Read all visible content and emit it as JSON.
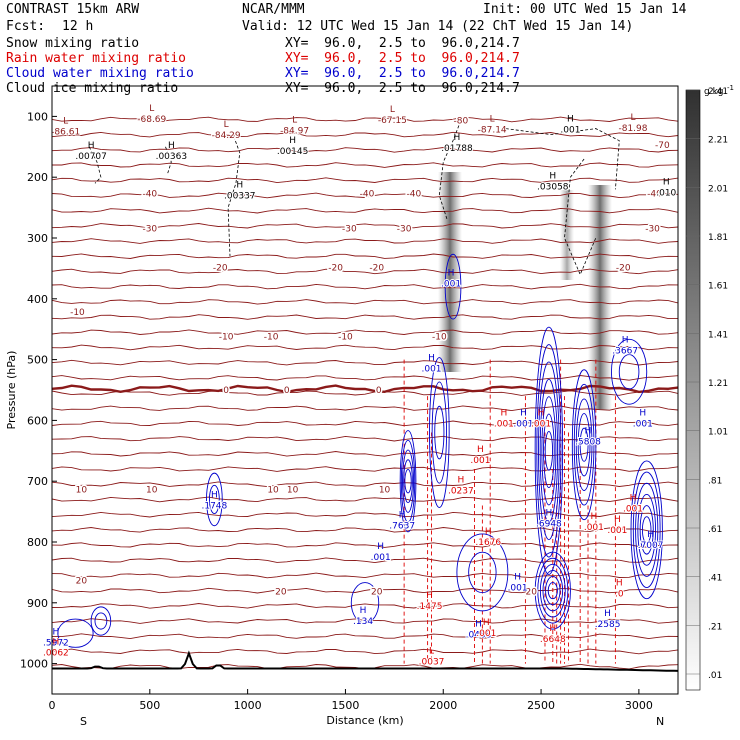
{
  "header": {
    "model": "CONTRAST 15km ARW",
    "org": "NCAR/MMM",
    "init": "Init: 00 UTC Wed 15 Jan 14",
    "fcst_label": "Fcst:",
    "fcst_value": "12 h",
    "valid": "Valid: 12 UTC Wed 15 Jan 14 (22 ChT Wed 15 Jan 14)"
  },
  "fields": [
    {
      "name": "Snow mixing ratio",
      "xy": "XY=  96.0,  2.5 to  96.0,214.7",
      "color": "#000000"
    },
    {
      "name": "Rain water mixing ratio",
      "xy": "XY=  96.0,  2.5 to  96.0,214.7",
      "color": "#dd0000"
    },
    {
      "name": "Cloud water mixing ratio",
      "xy": "XY=  96.0,  2.5 to  96.0,214.7",
      "color": "#0000cc"
    },
    {
      "name": "Cloud ice mixing ratio",
      "xy": "XY=  96.0,  2.5 to  96.0,214.7",
      "color": "#000000"
    }
  ],
  "chart_data": {
    "type": "cross-section",
    "title": "CONTRAST 15km ARW",
    "xlabel": "Distance (km)",
    "ylabel": "Pressure (hPa)",
    "xlim": [
      0,
      3200
    ],
    "ylim": [
      1050,
      50
    ],
    "x_ticks": [
      0,
      500,
      1000,
      1500,
      2000,
      2500,
      3000
    ],
    "y_ticks": [
      100,
      200,
      300,
      400,
      500,
      600,
      700,
      800,
      900,
      1000
    ],
    "x_endpoints": [
      "S",
      "N"
    ],
    "colorbar": {
      "unit": "g kg",
      "unit_exp": "-1",
      "levels": [
        ".01",
        ".21",
        ".41",
        ".61",
        ".81",
        "1.01",
        "1.21",
        "1.41",
        "1.61",
        "1.81",
        "2.01",
        "2.21",
        "2.41"
      ]
    },
    "temperature_contours": [
      {
        "label": "-80",
        "p": 105,
        "x": 2090
      },
      {
        "label": "-70",
        "p": 145,
        "x": 3120
      },
      {
        "label": "-40",
        "p": 225,
        "x": 500
      },
      {
        "label": "-40",
        "p": 225,
        "x": 1610
      },
      {
        "label": "-40",
        "p": 225,
        "x": 1850
      },
      {
        "label": "-40",
        "p": 225,
        "x": 3080
      },
      {
        "label": "-30",
        "p": 283,
        "x": 500
      },
      {
        "label": "-30",
        "p": 283,
        "x": 1520
      },
      {
        "label": "-30",
        "p": 283,
        "x": 1800
      },
      {
        "label": "-30",
        "p": 283,
        "x": 3070
      },
      {
        "label": "-20",
        "p": 347,
        "x": 860
      },
      {
        "label": "-20",
        "p": 347,
        "x": 1450
      },
      {
        "label": "-20",
        "p": 347,
        "x": 1660
      },
      {
        "label": "-20",
        "p": 347,
        "x": 2920
      },
      {
        "label": "-10",
        "p": 420,
        "x": 130
      },
      {
        "label": "-10",
        "p": 460,
        "x": 890
      },
      {
        "label": "-10",
        "p": 460,
        "x": 1120
      },
      {
        "label": "-10",
        "p": 460,
        "x": 1500
      },
      {
        "label": "-10",
        "p": 460,
        "x": 1980
      },
      {
        "label": "0",
        "p": 548,
        "x": 890
      },
      {
        "label": "0",
        "p": 548,
        "x": 1200
      },
      {
        "label": "0",
        "p": 548,
        "x": 1670
      },
      {
        "label": "10",
        "p": 712,
        "x": 150
      },
      {
        "label": "10",
        "p": 712,
        "x": 510
      },
      {
        "label": "10",
        "p": 712,
        "x": 1130
      },
      {
        "label": "10",
        "p": 712,
        "x": 1230
      },
      {
        "label": "10",
        "p": 712,
        "x": 1700
      },
      {
        "label": "20",
        "p": 862,
        "x": 150
      },
      {
        "label": "20",
        "p": 880,
        "x": 1170
      },
      {
        "label": "20",
        "p": 880,
        "x": 1660
      },
      {
        "label": "20",
        "p": 880,
        "x": 2450
      }
    ],
    "extrema": [
      {
        "type": "L",
        "value": "-86.61",
        "p": 120,
        "x": 70,
        "color": "#8b1a1a"
      },
      {
        "type": "L",
        "value": "-68.69",
        "p": 99,
        "x": 510,
        "color": "#8b1a1a"
      },
      {
        "type": "L",
        "value": "-84.29",
        "p": 126,
        "x": 890,
        "color": "#8b1a1a"
      },
      {
        "type": "L",
        "value": "-84.97",
        "p": 118,
        "x": 1240,
        "color": "#8b1a1a"
      },
      {
        "type": "L",
        "value": "-67.15",
        "p": 101,
        "x": 1740,
        "color": "#8b1a1a"
      },
      {
        "type": "L",
        "value": "-87.14",
        "p": 117,
        "x": 2250,
        "color": "#8b1a1a"
      },
      {
        "type": "L",
        "value": "-81.98",
        "p": 114,
        "x": 2970,
        "color": "#8b1a1a"
      },
      {
        "type": "H",
        "value": ".00707",
        "p": 160,
        "x": 200,
        "color": "#000000"
      },
      {
        "type": "H",
        "value": ".00363",
        "p": 160,
        "x": 610,
        "color": "#000000"
      },
      {
        "type": "H",
        "value": ".00145",
        "p": 152,
        "x": 1230,
        "color": "#000000"
      },
      {
        "type": "H",
        "value": ".01788",
        "p": 147,
        "x": 2070,
        "color": "#000000"
      },
      {
        "type": "H",
        "value": ".00337",
        "p": 225,
        "x": 960,
        "color": "#000000"
      },
      {
        "type": "H",
        "value": ".03058",
        "p": 210,
        "x": 2560,
        "color": "#000000"
      },
      {
        "type": "H",
        "value": ".010",
        "p": 220,
        "x": 3140,
        "color": "#000000"
      },
      {
        "type": "H",
        "value": ".001",
        "p": 117,
        "x": 2650,
        "color": "#000000"
      },
      {
        "type": "H",
        "value": ".3667",
        "p": 480,
        "x": 2930,
        "color": "#0000cc"
      },
      {
        "type": "H",
        "value": ".5808",
        "p": 630,
        "x": 2740,
        "color": "#0000cc"
      },
      {
        "type": "H",
        "value": ".6948",
        "p": 765,
        "x": 2540,
        "color": "#0000cc"
      },
      {
        "type": "H",
        "value": ".7637",
        "p": 768,
        "x": 1790,
        "color": "#0000cc"
      },
      {
        "type": "H",
        "value": ".1748",
        "p": 735,
        "x": 830,
        "color": "#0000cc"
      },
      {
        "type": "H",
        "value": ".7007",
        "p": 800,
        "x": 3060,
        "color": "#0000cc"
      },
      {
        "type": "H",
        "value": ".134",
        "p": 925,
        "x": 1590,
        "color": "#0000cc"
      },
      {
        "type": "H",
        "value": ".0468",
        "p": 947,
        "x": 2180,
        "color": "#0000cc"
      },
      {
        "type": "H",
        "value": ".2585",
        "p": 930,
        "x": 2840,
        "color": "#0000cc"
      },
      {
        "type": "H",
        "value": ".001",
        "p": 370,
        "x": 2040,
        "color": "#0000cc"
      },
      {
        "type": "H",
        "value": ".001",
        "p": 510,
        "x": 1940,
        "color": "#0000cc"
      },
      {
        "type": "H",
        "value": ".001",
        "p": 820,
        "x": 1680,
        "color": "#0000cc"
      },
      {
        "type": "H",
        "value": ".001",
        "p": 870,
        "x": 2380,
        "color": "#0000cc"
      },
      {
        "type": "H",
        "value": ".001",
        "p": 600,
        "x": 3020,
        "color": "#0000cc"
      },
      {
        "type": "H",
        "value": ".001",
        "p": 600,
        "x": 2410,
        "color": "#0000cc"
      },
      {
        "type": "H",
        "value": ".5972",
        "p": 960,
        "x": 20,
        "color": "#0000cc"
      },
      {
        "type": "H",
        "value": ".0062",
        "p": 977,
        "x": 20,
        "color": "#dd0000"
      },
      {
        "type": "H",
        "value": ".0237",
        "p": 710,
        "x": 2090,
        "color": "#dd0000"
      },
      {
        "type": "H",
        "value": ".1676",
        "p": 795,
        "x": 2230,
        "color": "#dd0000"
      },
      {
        "type": "H",
        "value": ".1475",
        "p": 900,
        "x": 1930,
        "color": "#dd0000"
      },
      {
        "type": "H",
        "value": ".6648",
        "p": 955,
        "x": 2560,
        "color": "#dd0000"
      },
      {
        "type": "L",
        "value": ".0037",
        "p": 992,
        "x": 1940,
        "color": "#dd0000"
      },
      {
        "type": "H",
        "value": ".001",
        "p": 660,
        "x": 2190,
        "color": "#dd0000"
      },
      {
        "type": "H",
        "value": ".001",
        "p": 600,
        "x": 2310,
        "color": "#dd0000"
      },
      {
        "type": "H",
        "value": ".001",
        "p": 600,
        "x": 2500,
        "color": "#dd0000"
      },
      {
        "type": "H",
        "value": ".001",
        "p": 770,
        "x": 2770,
        "color": "#dd0000"
      },
      {
        "type": "H",
        "value": ".001",
        "p": 775,
        "x": 2890,
        "color": "#dd0000"
      },
      {
        "type": "H",
        "value": ".001",
        "p": 945,
        "x": 2220,
        "color": "#dd0000"
      },
      {
        "type": "H",
        "value": ".0",
        "p": 880,
        "x": 2900,
        "color": "#dd0000"
      },
      {
        "type": "H",
        "value": ".001",
        "p": 740,
        "x": 2970,
        "color": "#dd0000"
      }
    ]
  }
}
